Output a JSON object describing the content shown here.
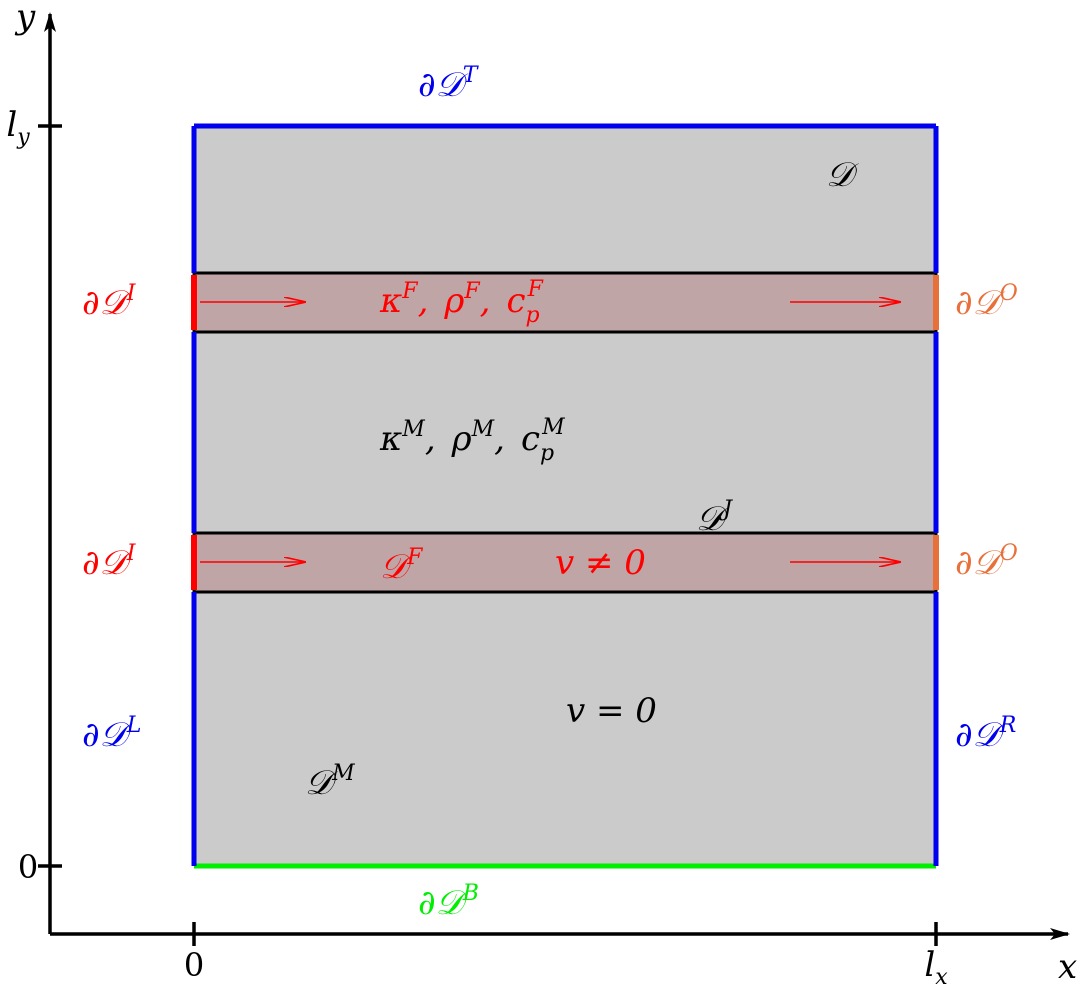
{
  "colors": {
    "domain_fill": "#cbcbcb",
    "fracture_fill": "#bfa5a5",
    "boundary_blue": "#0000ee",
    "boundary_green": "#00ee00",
    "inlet_red": "#ff0000",
    "outlet_orange": "#e8703a",
    "axis": "#000000",
    "text_black": "#000000"
  },
  "axes": {
    "x_label": "x",
    "y_label": "y",
    "x_ticks": {
      "zero": "0",
      "lx_base": "l",
      "lx_sub": "x"
    },
    "y_ticks": {
      "zero": "0",
      "ly_base": "l",
      "ly_sub": "y"
    }
  },
  "boundaries": {
    "top": {
      "base": "∂𝒟",
      "sup": "T"
    },
    "bottom": {
      "base": "∂𝒟",
      "sup": "B"
    },
    "left": {
      "base": "∂𝒟",
      "sup": "L"
    },
    "right": {
      "base": "∂𝒟",
      "sup": "R"
    },
    "inlet": {
      "base": "∂𝒟",
      "sup": "I"
    },
    "outlet": {
      "base": "∂𝒟",
      "sup": "O"
    }
  },
  "regions": {
    "domain": {
      "base": "𝒟"
    },
    "matrix": {
      "base": "𝒟",
      "sup": "M"
    },
    "fracture": {
      "base": "𝒟",
      "sup": "F"
    },
    "junction": {
      "base": "𝒟",
      "sup": "J"
    }
  },
  "properties": {
    "fracture": {
      "kappa": "κ",
      "kappa_sup": "F",
      "rho": "ρ",
      "rho_sup": "F",
      "c": "c",
      "c_sub": "p",
      "c_sup": "F",
      "sep": ","
    },
    "matrix": {
      "kappa": "κ",
      "kappa_sup": "M",
      "rho": "ρ",
      "rho_sup": "M",
      "c": "c",
      "c_sub": "p",
      "c_sup": "M",
      "sep": ","
    },
    "velocity_fracture": "v ≠ 0",
    "velocity_matrix": "v = 0"
  }
}
